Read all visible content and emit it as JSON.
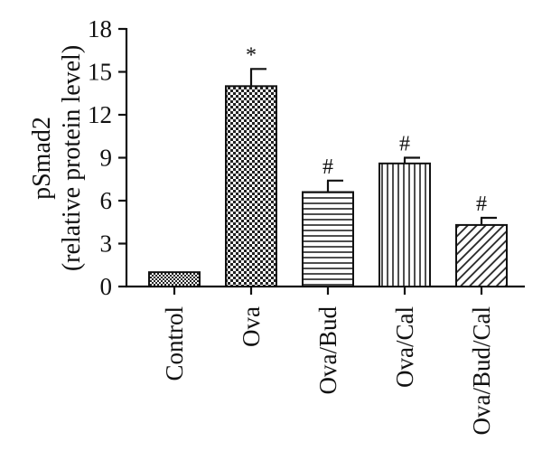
{
  "chart_data": {
    "type": "bar",
    "ylabel_line1": "pSmad2",
    "ylabel_line2": "(relative protein level)",
    "ylim": [
      0,
      18
    ],
    "yticks": [
      "0",
      "3",
      "6",
      "9",
      "12",
      "15",
      "18"
    ],
    "grid": false,
    "categories": [
      "Control",
      "Ova",
      "Ova/Bud",
      "Ova/Cal",
      "Ova/Bud/Cal"
    ],
    "values": [
      1.0,
      14.0,
      6.6,
      8.6,
      4.3
    ],
    "errors": [
      0.0,
      1.2,
      0.8,
      0.4,
      0.5
    ],
    "annotations": [
      "",
      "*",
      "#",
      "#",
      "#"
    ],
    "patterns": [
      "dense-checker",
      "checker",
      "horizontal-lines",
      "vertical-lines",
      "diagonal-lines"
    ]
  }
}
